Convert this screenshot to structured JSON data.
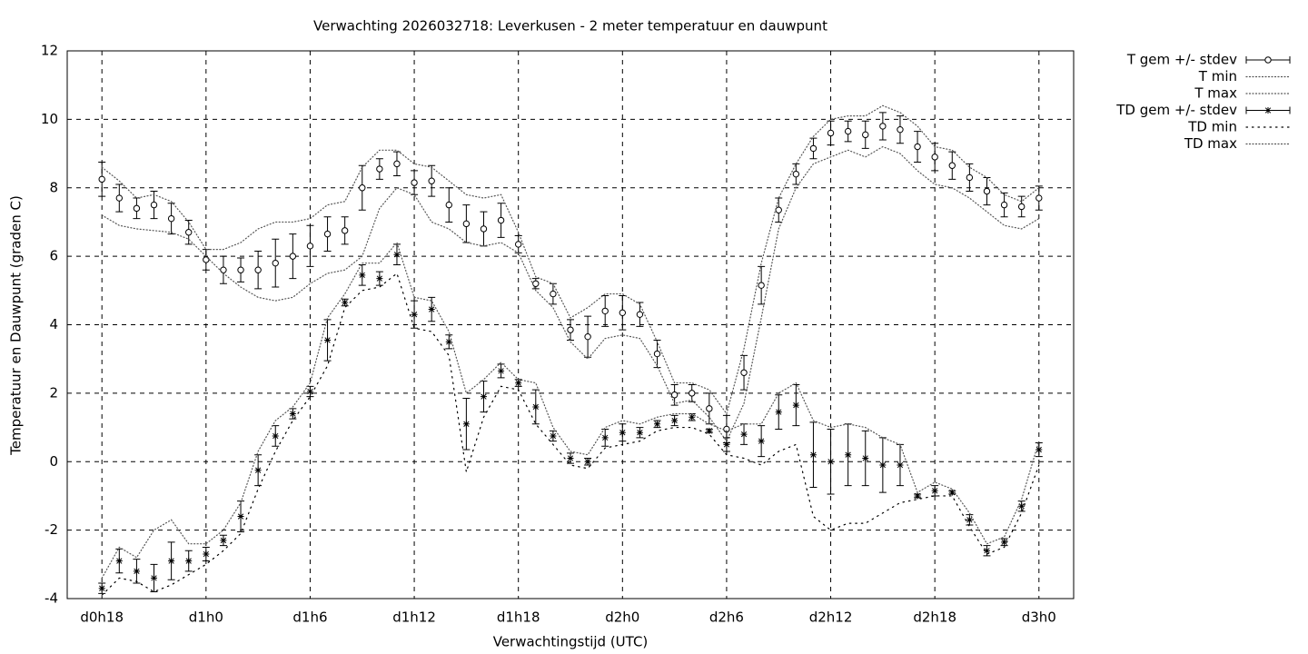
{
  "chart_data": {
    "type": "errorbar-line",
    "title": "Verwachting 2026032718: Leverkusen - 2 meter temperatuur en dauwpunt",
    "x_label": "Verwachtingstijd (UTC)",
    "y_label": "Temperatuur en Dauwpunt (graden C)",
    "x": [
      18,
      19,
      20,
      21,
      22,
      23,
      24,
      25,
      26,
      27,
      28,
      29,
      30,
      31,
      32,
      33,
      34,
      35,
      36,
      37,
      38,
      39,
      40,
      41,
      42,
      43,
      44,
      45,
      46,
      47,
      48,
      49,
      50,
      51,
      52,
      53,
      54,
      55,
      56,
      57,
      58,
      59,
      60,
      61,
      62,
      63,
      64,
      65,
      66,
      67,
      68,
      69,
      70,
      71,
      72
    ],
    "xlim": [
      16,
      74
    ],
    "xticks": [
      {
        "value": 18,
        "label": "d0h18"
      },
      {
        "value": 24,
        "label": "d1h0"
      },
      {
        "value": 30,
        "label": "d1h6"
      },
      {
        "value": 36,
        "label": "d1h12"
      },
      {
        "value": 42,
        "label": "d1h18"
      },
      {
        "value": 48,
        "label": "d2h0"
      },
      {
        "value": 54,
        "label": "d2h6"
      },
      {
        "value": 60,
        "label": "d2h12"
      },
      {
        "value": 66,
        "label": "d2h18"
      },
      {
        "value": 72,
        "label": "d3h0"
      }
    ],
    "ylim": [
      -4,
      12
    ],
    "yticks": [
      -4,
      -2,
      0,
      2,
      4,
      6,
      8,
      10,
      12
    ],
    "grid": true,
    "legend": "outside-right-top",
    "series": [
      {
        "name": "T gem +/- stdev",
        "style": "errorbar",
        "marker": "circle",
        "color": "#000000",
        "values": [
          8.25,
          7.7,
          7.4,
          7.5,
          7.1,
          6.7,
          5.9,
          5.6,
          5.6,
          5.6,
          5.8,
          6.0,
          6.3,
          6.65,
          6.75,
          8.0,
          8.55,
          8.7,
          8.15,
          8.2,
          7.5,
          6.95,
          6.8,
          7.05,
          6.35,
          5.2,
          4.9,
          3.85,
          3.65,
          4.4,
          4.35,
          4.3,
          3.15,
          1.95,
          2.0,
          1.55,
          0.95,
          2.6,
          5.15,
          7.35,
          8.4,
          9.15,
          9.6,
          9.65,
          9.55,
          9.8,
          9.7,
          9.2,
          8.9,
          8.65,
          8.3,
          7.9,
          7.5,
          7.45,
          7.7
        ],
        "errors": [
          0.5,
          0.4,
          0.3,
          0.4,
          0.45,
          0.35,
          0.3,
          0.4,
          0.35,
          0.55,
          0.7,
          0.65,
          0.6,
          0.5,
          0.4,
          0.65,
          0.3,
          0.35,
          0.35,
          0.45,
          0.5,
          0.55,
          0.5,
          0.5,
          0.25,
          0.15,
          0.3,
          0.3,
          0.6,
          0.45,
          0.5,
          0.35,
          0.4,
          0.3,
          0.25,
          0.45,
          0.4,
          0.5,
          0.55,
          0.35,
          0.3,
          0.3,
          0.35,
          0.3,
          0.4,
          0.4,
          0.4,
          0.45,
          0.4,
          0.4,
          0.4,
          0.4,
          0.35,
          0.3,
          0.35
        ]
      },
      {
        "name": "T min",
        "style": "line",
        "dash": "1 2.5",
        "color": "#555555",
        "values": [
          7.2,
          6.9,
          6.8,
          6.75,
          6.7,
          6.5,
          6.0,
          5.5,
          5.1,
          4.8,
          4.7,
          4.8,
          5.2,
          5.5,
          5.6,
          6.0,
          7.4,
          8.0,
          7.8,
          7.0,
          6.8,
          6.4,
          6.3,
          6.4,
          6.1,
          5.0,
          4.5,
          3.5,
          3.0,
          3.6,
          3.7,
          3.6,
          2.8,
          1.7,
          1.8,
          1.3,
          0.6,
          1.7,
          4.2,
          6.8,
          8.0,
          8.7,
          8.9,
          9.1,
          8.9,
          9.2,
          9.0,
          8.5,
          8.1,
          8.0,
          7.7,
          7.3,
          6.9,
          6.8,
          7.1
        ]
      },
      {
        "name": "T max",
        "style": "line",
        "dash": "1 2.5",
        "color": "#555555",
        "values": [
          8.6,
          8.2,
          7.7,
          7.8,
          7.6,
          7.0,
          6.2,
          6.2,
          6.4,
          6.8,
          7.0,
          7.0,
          7.1,
          7.5,
          7.6,
          8.6,
          9.1,
          9.1,
          8.7,
          8.6,
          8.2,
          7.8,
          7.7,
          7.8,
          6.7,
          5.4,
          5.2,
          4.2,
          4.5,
          4.9,
          4.9,
          4.6,
          3.5,
          2.3,
          2.3,
          2.1,
          1.4,
          3.3,
          5.8,
          7.7,
          8.7,
          9.5,
          10.0,
          10.1,
          10.1,
          10.4,
          10.2,
          9.8,
          9.2,
          9.1,
          8.6,
          8.3,
          7.8,
          7.6,
          8.0
        ]
      },
      {
        "name": "TD gem +/- stdev",
        "style": "errorbar",
        "marker": "asterisk",
        "color": "#000000",
        "values": [
          -3.7,
          -2.9,
          -3.2,
          -3.4,
          -2.9,
          -2.9,
          -2.7,
          -2.3,
          -1.6,
          -0.25,
          0.75,
          1.4,
          2.05,
          3.55,
          4.65,
          5.45,
          5.35,
          6.05,
          4.3,
          4.45,
          3.5,
          1.1,
          1.9,
          2.65,
          2.3,
          1.6,
          0.75,
          0.1,
          0.0,
          0.7,
          0.85,
          0.85,
          1.1,
          1.2,
          1.3,
          0.9,
          0.5,
          0.8,
          0.6,
          1.45,
          1.65,
          0.2,
          0.0,
          0.2,
          0.1,
          -0.1,
          -0.1,
          -1.0,
          -0.85,
          -0.9,
          -1.7,
          -2.6,
          -2.35,
          -1.3,
          0.35
        ],
        "errors": [
          0.15,
          0.35,
          0.35,
          0.4,
          0.55,
          0.3,
          0.2,
          0.15,
          0.45,
          0.45,
          0.3,
          0.15,
          0.15,
          0.6,
          0.1,
          0.3,
          0.2,
          0.3,
          0.4,
          0.35,
          0.2,
          0.75,
          0.45,
          0.2,
          0.1,
          0.5,
          0.15,
          0.15,
          0.1,
          0.25,
          0.25,
          0.15,
          0.1,
          0.15,
          0.1,
          0.05,
          0.2,
          0.3,
          0.45,
          0.5,
          0.6,
          0.95,
          0.95,
          0.9,
          0.8,
          0.8,
          0.6,
          0.05,
          0.15,
          0.05,
          0.15,
          0.15,
          0.1,
          0.15,
          0.2
        ]
      },
      {
        "name": "TD min",
        "style": "line",
        "dash": "1.5 5",
        "color": "#000000",
        "values": [
          -3.9,
          -3.4,
          -3.5,
          -3.8,
          -3.6,
          -3.3,
          -3.0,
          -2.6,
          -2.1,
          -0.8,
          0.3,
          1.2,
          1.9,
          2.8,
          4.5,
          5.0,
          5.1,
          5.5,
          3.9,
          3.8,
          3.1,
          -0.3,
          1.3,
          2.2,
          2.1,
          1.1,
          0.5,
          -0.1,
          -0.2,
          0.4,
          0.5,
          0.6,
          0.9,
          1.0,
          1.0,
          0.8,
          0.2,
          0.1,
          -0.1,
          0.3,
          0.5,
          -1.6,
          -2.0,
          -1.8,
          -1.8,
          -1.5,
          -1.2,
          -1.1,
          -1.0,
          -1.0,
          -1.9,
          -2.7,
          -2.5,
          -1.5,
          -0.1
        ]
      },
      {
        "name": "TD max",
        "style": "line",
        "dash": "1 2.5",
        "color": "#555555",
        "values": [
          -3.4,
          -2.5,
          -2.8,
          -2.0,
          -1.7,
          -2.4,
          -2.4,
          -2.0,
          -1.2,
          0.3,
          1.2,
          1.6,
          2.3,
          4.2,
          4.9,
          5.8,
          5.8,
          6.4,
          4.8,
          4.7,
          3.8,
          2.0,
          2.4,
          2.9,
          2.4,
          2.3,
          1.0,
          0.3,
          0.2,
          1.0,
          1.2,
          1.1,
          1.3,
          1.4,
          1.4,
          1.1,
          0.9,
          1.1,
          1.1,
          2.0,
          2.3,
          1.2,
          1.0,
          1.1,
          1.0,
          0.7,
          0.5,
          -0.9,
          -0.6,
          -0.8,
          -1.5,
          -2.4,
          -2.2,
          -1.1,
          0.6
        ]
      }
    ]
  }
}
